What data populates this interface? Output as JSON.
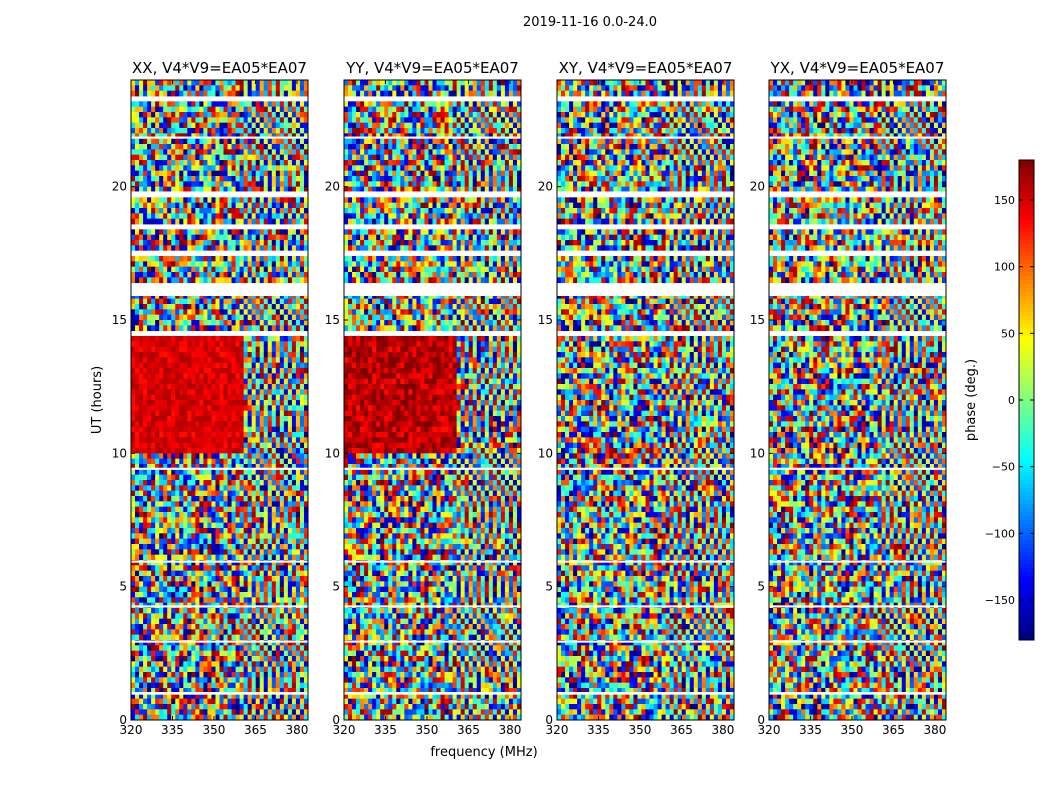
{
  "figure": {
    "suptitle": "2019-11-16 0.0-24.0",
    "xlabel": "frequency (MHz)",
    "ylabel": "UT (hours)"
  },
  "chart_data": {
    "type": "heatmap",
    "title": "2019-11-16 0.0-24.0",
    "xlabel": "frequency (MHz)",
    "ylabel": "UT (hours)",
    "xlim": [
      320,
      384
    ],
    "ylim": [
      0,
      24
    ],
    "xticks": [
      320,
      335,
      350,
      365,
      380
    ],
    "yticks": [
      0,
      5,
      10,
      15,
      20
    ],
    "panels": [
      {
        "title": "XX, V4*V9=EA05*EA07",
        "polarization": "XX"
      },
      {
        "title": "YY, V4*V9=EA05*EA07",
        "polarization": "YY"
      },
      {
        "title": "XY, V4*V9=EA05*EA07",
        "polarization": "XY"
      },
      {
        "title": "YX, V4*V9=EA05*EA07",
        "polarization": "YX"
      }
    ],
    "colorbar": {
      "label": "phase (deg.)",
      "range": [
        -180,
        180
      ],
      "ticks": [
        -150,
        -100,
        -50,
        0,
        50,
        100,
        150
      ],
      "tick_labels": [
        "−150",
        "−100",
        "−50",
        "0",
        "50",
        "100",
        "150"
      ],
      "colormap": "jet"
    }
  }
}
